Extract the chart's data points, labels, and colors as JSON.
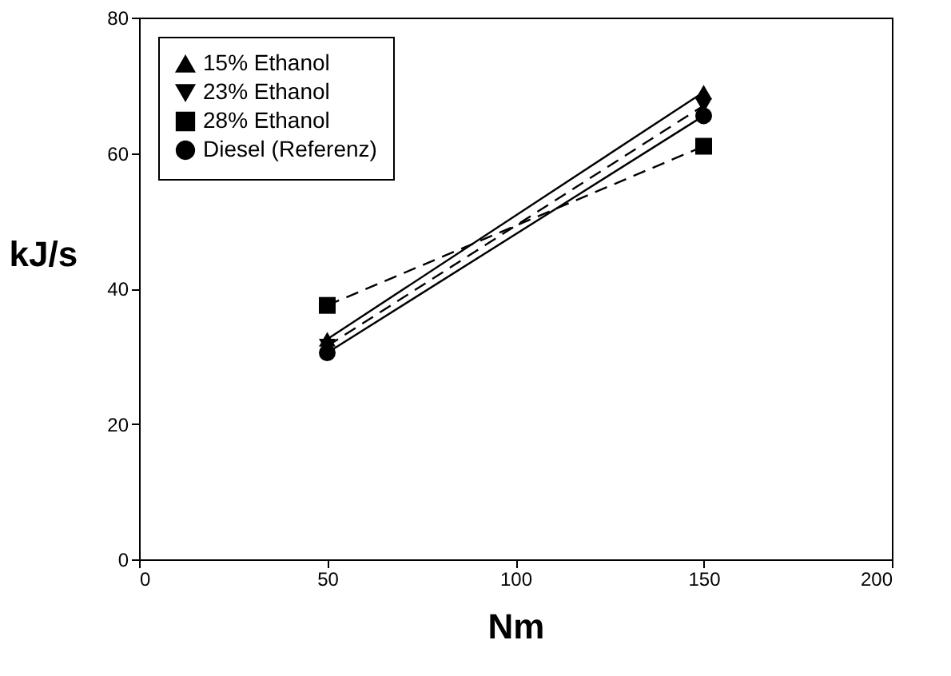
{
  "chart_data": {
    "type": "line",
    "xlabel": "Nm",
    "ylabel": "kJ/s",
    "x": [
      50,
      150
    ],
    "xlim": [
      0,
      200
    ],
    "xticks": [
      0,
      50,
      100,
      150,
      200
    ],
    "ylim": [
      0,
      80
    ],
    "yticks": [
      0,
      20,
      40,
      60,
      80
    ],
    "grid": false,
    "legend": "top left",
    "series": [
      {
        "name": "15% Ethanol",
        "color": "#000000",
        "marker": "triangle",
        "line_style": "solid",
        "values": [
          32.5,
          69
        ]
      },
      {
        "name": "23% Ethanol",
        "color": "#000000",
        "marker": "triangle-down",
        "line_style": "dashed",
        "values": [
          31.5,
          67
        ]
      },
      {
        "name": "28% Ethanol",
        "color": "#000000",
        "marker": "square",
        "line_style": "dashed",
        "values": [
          37.5,
          61
        ]
      },
      {
        "name": "Diesel (Referenz)",
        "color": "#000000",
        "marker": "circle",
        "line_style": "solid",
        "values": [
          30.5,
          65.5
        ]
      }
    ]
  }
}
